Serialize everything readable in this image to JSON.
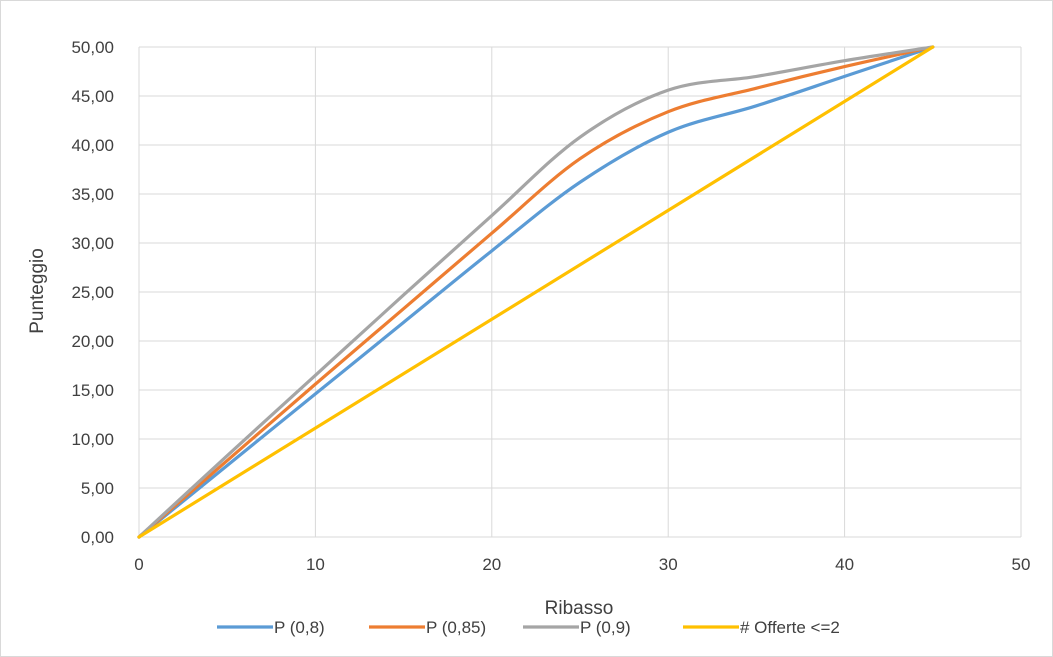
{
  "chart_data": {
    "type": "line",
    "title": "",
    "xlabel": "Ribasso",
    "ylabel": "Punteggio",
    "xlim": [
      0,
      50
    ],
    "ylim": [
      0,
      50
    ],
    "x_ticks": [
      0,
      10,
      20,
      30,
      40,
      50
    ],
    "x_tick_labels": [
      "0",
      "10",
      "20",
      "30",
      "40",
      "50"
    ],
    "y_ticks": [
      0,
      5,
      10,
      15,
      20,
      25,
      30,
      35,
      40,
      45,
      50
    ],
    "y_tick_labels": [
      "0,00",
      "5,00",
      "10,00",
      "15,00",
      "20,00",
      "25,00",
      "30,00",
      "35,00",
      "40,00",
      "45,00",
      "50,00"
    ],
    "grid": true,
    "legend_position": "bottom",
    "series": [
      {
        "name": "P (0,8)",
        "color": "#5b9bd5",
        "points": [
          [
            0,
            0
          ],
          [
            5,
            7.3
          ],
          [
            10,
            14.6
          ],
          [
            15,
            21.9
          ],
          [
            20,
            29.2
          ],
          [
            25,
            36.2
          ],
          [
            30,
            41.3
          ],
          [
            35,
            44.0
          ],
          [
            40,
            47.0
          ],
          [
            45,
            50.0
          ]
        ]
      },
      {
        "name": "P (0,85)",
        "color": "#ed7d31",
        "points": [
          [
            0,
            0
          ],
          [
            5,
            7.8
          ],
          [
            10,
            15.6
          ],
          [
            15,
            23.3
          ],
          [
            20,
            31.0
          ],
          [
            25,
            38.6
          ],
          [
            30,
            43.4
          ],
          [
            35,
            45.8
          ],
          [
            40,
            48.0
          ],
          [
            45,
            50.0
          ]
        ]
      },
      {
        "name": "P (0,9)",
        "color": "#a5a5a5",
        "points": [
          [
            0,
            0
          ],
          [
            5,
            8.3
          ],
          [
            10,
            16.5
          ],
          [
            15,
            24.7
          ],
          [
            20,
            32.8
          ],
          [
            25,
            40.8
          ],
          [
            30,
            45.6
          ],
          [
            35,
            47.0
          ],
          [
            40,
            48.6
          ],
          [
            45,
            50.0
          ]
        ]
      },
      {
        "name": "# Offerte <=2",
        "color": "#ffc000",
        "points": [
          [
            0,
            0
          ],
          [
            45,
            50.0
          ]
        ]
      }
    ]
  }
}
